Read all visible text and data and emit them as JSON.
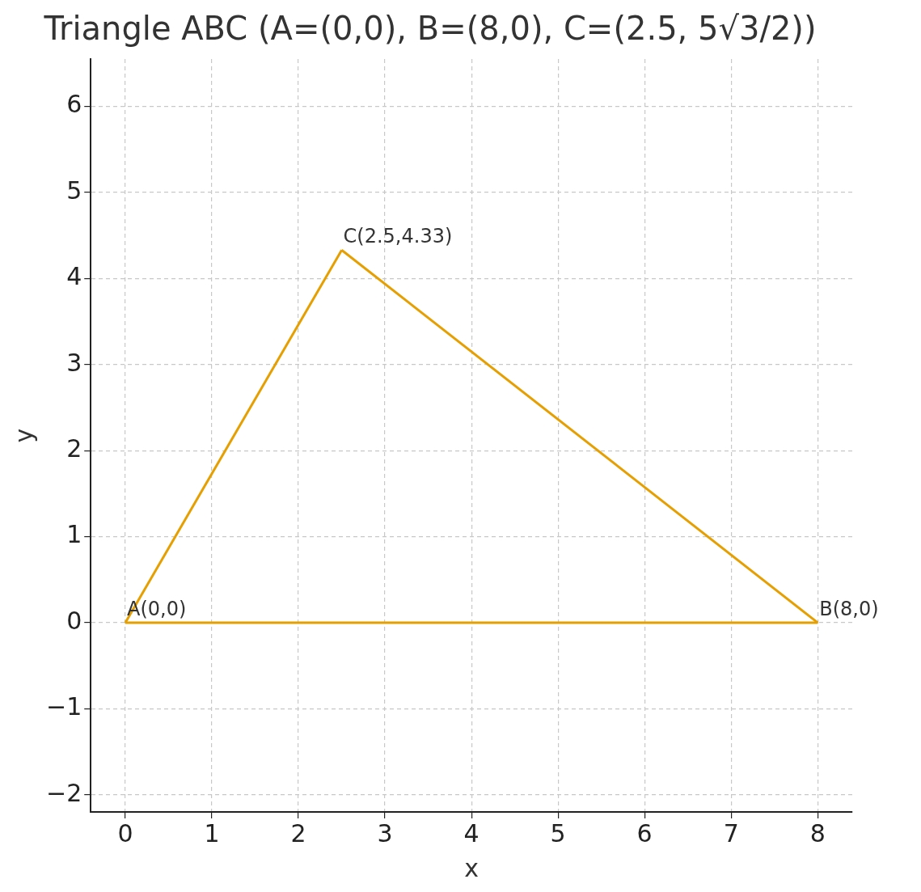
{
  "chart_data": {
    "type": "line",
    "title": "Triangle ABC (A=(0,0), B=(8,0), C=(2.5, 5√3/2))",
    "xlabel": "x",
    "ylabel": "y",
    "series": [
      {
        "color": "#e69f00",
        "x": [
          0,
          8
        ],
        "values": [
          0,
          0
        ]
      },
      {
        "color": "#e69f00",
        "x": [
          0,
          2.5
        ],
        "values": [
          0,
          4.33
        ]
      },
      {
        "color": "#e69f00",
        "x": [
          2.5,
          8
        ],
        "values": [
          4.33,
          0
        ]
      }
    ],
    "xlim": [
      -0.4,
      8.4
    ],
    "xticks": [
      0,
      1,
      2,
      3,
      4,
      5,
      6,
      7,
      8
    ],
    "ylim": [
      -2.2,
      6.55
    ],
    "yticks": [
      -2,
      -1,
      0,
      1,
      2,
      3,
      4,
      5,
      6
    ],
    "grid": true,
    "marker": "none",
    "line_style": "solid",
    "legend": false,
    "annotations": [
      {
        "text": "A(0,0)",
        "x": 0,
        "y": 0
      },
      {
        "text": "B(8,0)",
        "x": 8,
        "y": 0
      },
      {
        "text": "C(2.5,4.33)",
        "x": 2.5,
        "y": 4.33
      }
    ]
  }
}
